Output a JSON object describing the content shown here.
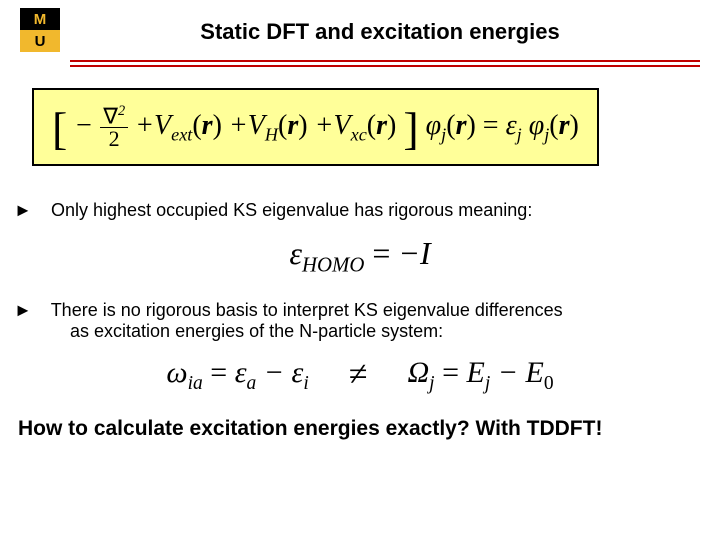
{
  "colors": {
    "rule": "#c00000",
    "eq_box_bg": "#ffff99",
    "eq_box_border": "#000000",
    "logo_black": "#000000",
    "logo_gold": "#f1b82d",
    "text": "#000000",
    "background": "#ffffff"
  },
  "logo": {
    "top": "M",
    "bottom": "U"
  },
  "title": "Static DFT and excitation energies",
  "equations": {
    "ks": {
      "lbracket": "[",
      "kinetic_num": "∇",
      "kinetic_sup": "2",
      "kinetic_den": "2",
      "minus": "−",
      "plus": "+",
      "Vext": "V",
      "Vext_sub": "ext",
      "VH": "V",
      "VH_sub": "H",
      "Vxc": "V",
      "Vxc_sub": "xc",
      "r": "r",
      "rbracket": "]",
      "phi": "φ",
      "phi_sub": "j",
      "eq": "=",
      "eps": "ε",
      "eps_sub": "j"
    },
    "homo": {
      "eps": "ε",
      "sub": "HOMO",
      "eq": "=",
      "minus": "−",
      "I": "I"
    },
    "omega_eq": {
      "omega": "ω",
      "omega_sub": "ia",
      "eq": "=",
      "eps": "ε",
      "a": "a",
      "minus": "−",
      "i": "i"
    },
    "neq": "≠",
    "Omega_eq": {
      "Omega": "Ω",
      "Omega_sub": "j",
      "eq": "=",
      "E": "E",
      "j": "j",
      "minus": "−",
      "zero": "0"
    }
  },
  "bullets": {
    "b1": "Only highest occupied KS eigenvalue has rigorous meaning:",
    "b2a": "There is no rigorous basis to interpret KS eigenvalue differences",
    "b2b": "as excitation energies of the N-particle system:"
  },
  "arrow": "►",
  "tail": "How to calculate excitation energies exactly? With TDDFT!",
  "typography": {
    "title_fontsize": 22,
    "bullet_fontsize": 18,
    "tail_fontsize": 21,
    "eq_main_fontsize": 28,
    "eq_center_fontsize": 32
  }
}
